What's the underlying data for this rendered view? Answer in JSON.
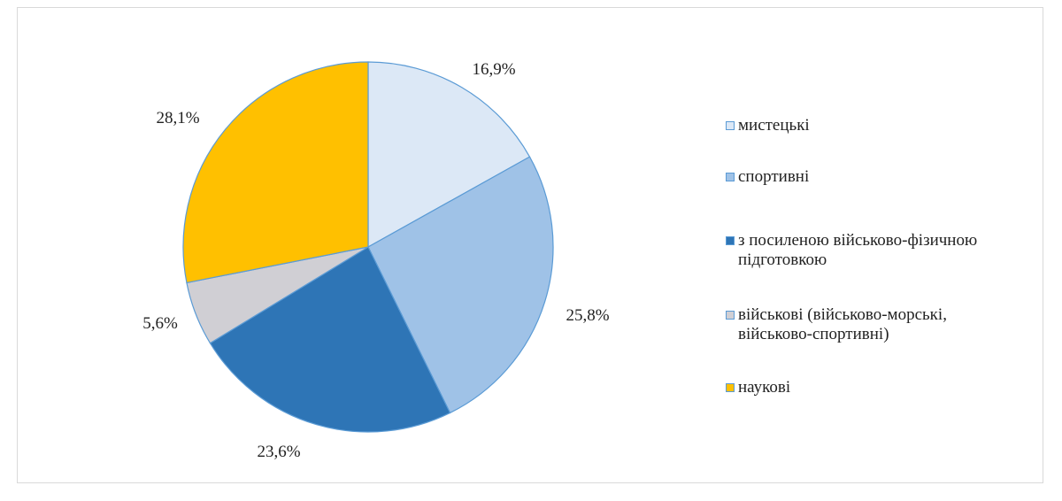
{
  "chart_data": {
    "type": "pie",
    "title": "",
    "start_angle_deg": 90,
    "direction": "clockwise",
    "slices": [
      {
        "label": "мистецькі",
        "value": 16.9,
        "value_label": "16,9%",
        "color": "#dce8f6",
        "stroke": "#5b9bd5"
      },
      {
        "label": "спортивні",
        "value": 25.8,
        "value_label": "25,8%",
        "color": "#9fc2e7",
        "stroke": "#5b9bd5"
      },
      {
        "label": "з посиленою військово-фізичною\nпідготовкою",
        "value": 23.6,
        "value_label": "23,6%",
        "color": "#2e75b6",
        "stroke": "#5b9bd5"
      },
      {
        "label": "військові (військово-морські,\nвійськово-спортивні)",
        "value": 5.6,
        "value_label": "5,6%",
        "color": "#d0cfd4",
        "stroke": "#5b9bd5"
      },
      {
        "label": "наукові",
        "value": 28.1,
        "value_label": "28,1%",
        "color": "#ffc000",
        "stroke": "#5b9bd5"
      }
    ],
    "legend_position": "right"
  }
}
